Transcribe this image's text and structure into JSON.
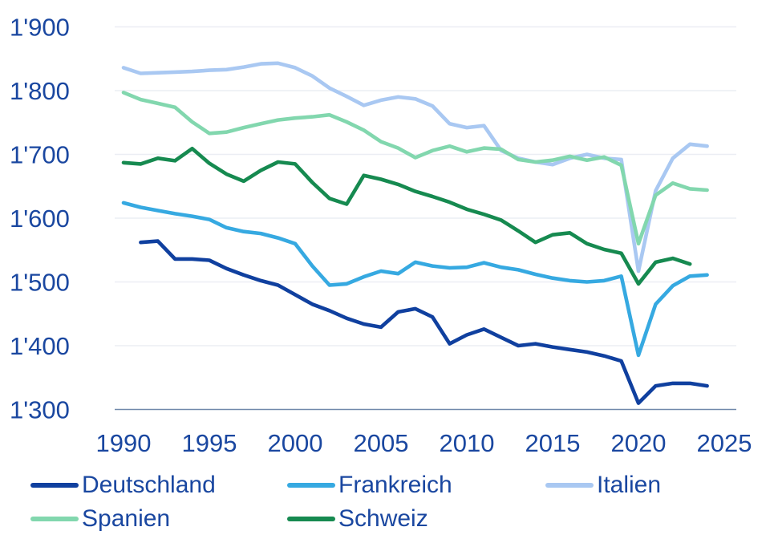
{
  "chart_data": {
    "type": "line",
    "x": [
      1990,
      1991,
      1992,
      1993,
      1994,
      1995,
      1996,
      1997,
      1998,
      1999,
      2000,
      2001,
      2002,
      2003,
      2004,
      2005,
      2006,
      2007,
      2008,
      2009,
      2010,
      2011,
      2012,
      2013,
      2014,
      2015,
      2016,
      2017,
      2018,
      2019,
      2020,
      2021,
      2022,
      2023,
      2024
    ],
    "series": [
      {
        "name": "Deutschland",
        "color": "#10409f",
        "values": [
          null,
          1562,
          1564,
          1536,
          1536,
          1534,
          1521,
          1511,
          1502,
          1495,
          1480,
          1465,
          1455,
          1443,
          1434,
          1429,
          1453,
          1458,
          1445,
          1403,
          1417,
          1426,
          1413,
          1400,
          1403,
          1398,
          1394,
          1390,
          1384,
          1376,
          1310,
          1337,
          1341,
          1341,
          1337
        ]
      },
      {
        "name": "Frankreich",
        "color": "#36a9e1",
        "values": [
          1624,
          1617,
          1612,
          1607,
          1603,
          1598,
          1585,
          1579,
          1576,
          1569,
          1560,
          1525,
          1495,
          1497,
          1508,
          1517,
          1513,
          1531,
          1525,
          1522,
          1523,
          1530,
          1523,
          1519,
          1512,
          1506,
          1502,
          1500,
          1502,
          1509,
          1385,
          1465,
          1494,
          1509,
          1511
        ]
      },
      {
        "name": "Italien",
        "color": "#a9c8f2",
        "values": [
          1836,
          1827,
          1828,
          1829,
          1830,
          1832,
          1833,
          1837,
          1842,
          1843,
          1836,
          1823,
          1804,
          1791,
          1777,
          1785,
          1790,
          1787,
          1776,
          1748,
          1742,
          1745,
          1706,
          1694,
          1688,
          1684,
          1694,
          1700,
          1694,
          1692,
          1517,
          1643,
          1694,
          1716,
          1713
        ]
      },
      {
        "name": "Spanien",
        "color": "#82d7ae",
        "values": [
          1797,
          1786,
          1780,
          1774,
          1751,
          1733,
          1735,
          1742,
          1748,
          1754,
          1757,
          1759,
          1762,
          1751,
          1738,
          1720,
          1710,
          1695,
          1706,
          1713,
          1704,
          1710,
          1708,
          1692,
          1688,
          1691,
          1697,
          1691,
          1696,
          1683,
          1560,
          1636,
          1655,
          1646,
          1644
        ]
      },
      {
        "name": "Schweiz",
        "color": "#168a50",
        "values": [
          1687,
          1685,
          1694,
          1690,
          1709,
          1686,
          1669,
          1658,
          1675,
          1688,
          1685,
          1656,
          1631,
          1622,
          1667,
          1661,
          1653,
          1642,
          1634,
          1625,
          1614,
          1606,
          1597,
          1580,
          1562,
          1574,
          1577,
          1560,
          1551,
          1545,
          1497,
          1531,
          1537,
          1528,
          null
        ]
      }
    ],
    "title": "",
    "xlabel": "",
    "ylabel": "",
    "ylim": [
      1300,
      1900
    ],
    "y_ticks": [
      1300,
      1400,
      1500,
      1600,
      1700,
      1800,
      1900
    ],
    "y_tick_labels": [
      "1'300",
      "1'400",
      "1'500",
      "1'600",
      "1'700",
      "1'800",
      "1'900"
    ],
    "x_ticks": [
      1990,
      1995,
      2000,
      2005,
      2010,
      2015,
      2020,
      2025
    ],
    "grid": "horizontal-only",
    "legend_position": "bottom-left"
  },
  "styles": {
    "axis_text_color": "#1a47a0",
    "grid_color": "#eceef4",
    "baseline_color": "#7089ab",
    "background": "#ffffff"
  }
}
